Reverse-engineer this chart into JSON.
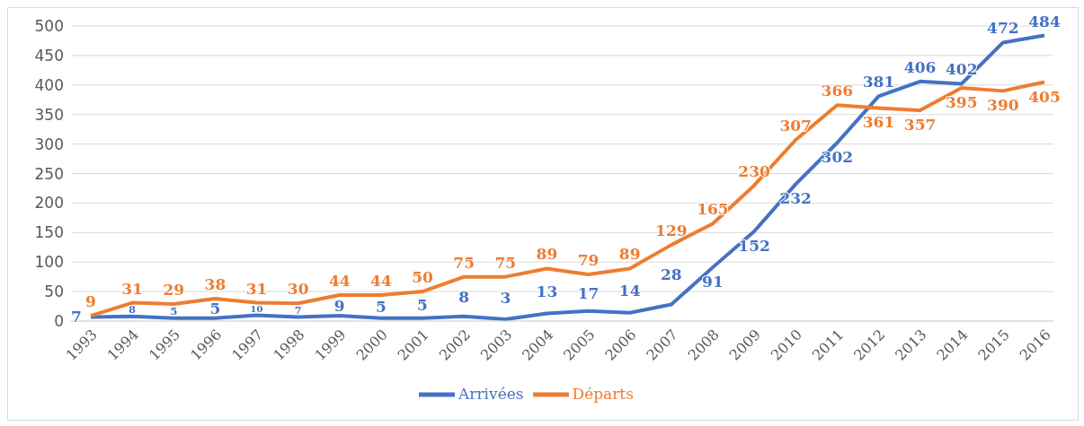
{
  "chart_data": {
    "type": "line",
    "categories": [
      "1993",
      "1994",
      "1995",
      "1996",
      "1997",
      "1998",
      "1999",
      "2000",
      "2001",
      "2002",
      "2003",
      "2004",
      "2005",
      "2006",
      "2007",
      "2008",
      "2009",
      "2010",
      "2011",
      "2012",
      "2013",
      "2014",
      "2015",
      "2016"
    ],
    "series": [
      {
        "name": "Arrivées",
        "color": "#4472c4",
        "values": [
          7,
          8,
          5,
          5,
          10,
          7,
          9,
          5,
          5,
          8,
          3,
          13,
          17,
          14,
          28,
          91,
          152,
          232,
          302,
          381,
          406,
          402,
          472,
          484
        ]
      },
      {
        "name": "Départs",
        "color": "#ed7d31",
        "values": [
          9,
          31,
          29,
          38,
          31,
          30,
          44,
          44,
          50,
          75,
          75,
          89,
          79,
          89,
          129,
          165,
          230,
          307,
          366,
          361,
          357,
          395,
          390,
          405
        ]
      }
    ],
    "ylim": [
      0,
      500
    ],
    "yticks": [
      0,
      50,
      100,
      150,
      200,
      250,
      300,
      350,
      400,
      450,
      500
    ],
    "grid": "y",
    "legend": "bottom",
    "data_labels": true,
    "marker": "none",
    "line_style": "solid"
  }
}
